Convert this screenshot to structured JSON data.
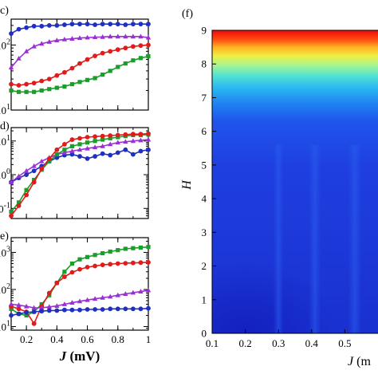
{
  "chart_data": [
    {
      "id": "c",
      "type": "line",
      "panel_label": "c)",
      "yscale": "log",
      "ytick_labels": [
        {
          "base": "10",
          "exp": "2"
        },
        {
          "base": "10",
          "exp": "1"
        }
      ],
      "ytick_values": [
        100,
        10
      ],
      "ylim": [
        10,
        250
      ],
      "xlim": [
        0.1,
        1.0
      ],
      "series": [
        {
          "color": "#1f2fbf",
          "marker": "circle",
          "x": [
            0.1,
            0.15,
            0.2,
            0.25,
            0.3,
            0.35,
            0.4,
            0.45,
            0.5,
            0.55,
            0.6,
            0.65,
            0.7,
            0.75,
            0.8,
            0.85,
            0.9,
            0.95,
            1.0
          ],
          "values": [
            150,
            175,
            185,
            195,
            195,
            200,
            200,
            205,
            210,
            210,
            210,
            205,
            210,
            210,
            210,
            205,
            210,
            210,
            210
          ]
        },
        {
          "color": "#9b2fd6",
          "marker": "triangle",
          "x": [
            0.1,
            0.15,
            0.2,
            0.25,
            0.3,
            0.35,
            0.4,
            0.45,
            0.5,
            0.55,
            0.6,
            0.65,
            0.7,
            0.75,
            0.8,
            0.85,
            0.9,
            0.95,
            1.0
          ],
          "values": [
            45,
            62,
            80,
            95,
            105,
            112,
            118,
            122,
            125,
            128,
            130,
            132,
            133,
            135,
            135,
            135,
            135,
            135,
            130
          ]
        },
        {
          "color": "#e11a1a",
          "marker": "circle",
          "x": [
            0.1,
            0.15,
            0.2,
            0.25,
            0.3,
            0.35,
            0.4,
            0.45,
            0.5,
            0.55,
            0.6,
            0.65,
            0.7,
            0.75,
            0.8,
            0.85,
            0.9,
            0.95,
            1.0
          ],
          "values": [
            25,
            24,
            25,
            26,
            28,
            30,
            34,
            38,
            44,
            52,
            60,
            68,
            75,
            80,
            85,
            90,
            95,
            98,
            100
          ]
        },
        {
          "color": "#1a9e2a",
          "marker": "square",
          "x": [
            0.1,
            0.15,
            0.2,
            0.25,
            0.3,
            0.35,
            0.4,
            0.45,
            0.5,
            0.55,
            0.6,
            0.65,
            0.7,
            0.75,
            0.8,
            0.85,
            0.9,
            0.95,
            1.0
          ],
          "values": [
            20,
            19,
            19,
            19,
            20,
            21,
            22,
            23,
            25,
            27,
            29,
            31,
            35,
            40,
            46,
            52,
            58,
            63,
            67
          ]
        }
      ]
    },
    {
      "id": "d",
      "type": "line",
      "panel_label": "d)",
      "yscale": "log",
      "ytick_labels": [
        {
          "base": "10",
          "exp": "1"
        },
        {
          "base": "10",
          "exp": "0"
        },
        {
          "base": "10",
          "exp": "-1"
        }
      ],
      "ytick_values": [
        10,
        1,
        0.1
      ],
      "ylim": [
        0.05,
        25
      ],
      "xlim": [
        0.1,
        1.0
      ],
      "series": [
        {
          "color": "#1f2fbf",
          "marker": "circle",
          "x": [
            0.1,
            0.15,
            0.2,
            0.25,
            0.3,
            0.35,
            0.4,
            0.45,
            0.5,
            0.55,
            0.6,
            0.65,
            0.7,
            0.75,
            0.8,
            0.85,
            0.9,
            0.95,
            1.0
          ],
          "values": [
            0.6,
            0.8,
            1.0,
            1.3,
            1.8,
            2.5,
            3.2,
            3.8,
            4.0,
            3.5,
            3.0,
            3.5,
            4.2,
            3.8,
            4.5,
            5.5,
            4.0,
            5.0,
            5.5
          ]
        },
        {
          "color": "#9b2fd6",
          "marker": "triangle",
          "x": [
            0.1,
            0.15,
            0.2,
            0.25,
            0.3,
            0.35,
            0.4,
            0.45,
            0.5,
            0.55,
            0.6,
            0.65,
            0.7,
            0.75,
            0.8,
            0.85,
            0.9,
            0.95,
            1.0
          ],
          "values": [
            0.6,
            0.9,
            1.3,
            1.8,
            2.5,
            3.2,
            4.0,
            4.5,
            5.0,
            5.5,
            6.0,
            6.5,
            7.0,
            8.0,
            9.0,
            9.5,
            10,
            10.5,
            11
          ]
        },
        {
          "color": "#1a9e2a",
          "marker": "square",
          "x": [
            0.1,
            0.15,
            0.2,
            0.25,
            0.3,
            0.35,
            0.4,
            0.45,
            0.5,
            0.55,
            0.6,
            0.65,
            0.7,
            0.75,
            0.8,
            0.85,
            0.9,
            0.95,
            1.0
          ],
          "values": [
            0.08,
            0.15,
            0.35,
            0.7,
            1.4,
            2.5,
            4.0,
            5.5,
            7.0,
            8.0,
            9.0,
            10,
            11,
            12,
            13,
            14,
            15,
            15,
            15.5
          ]
        },
        {
          "color": "#e11a1a",
          "marker": "circle",
          "x": [
            0.1,
            0.15,
            0.2,
            0.25,
            0.3,
            0.35,
            0.4,
            0.45,
            0.5,
            0.55,
            0.6,
            0.65,
            0.7,
            0.75,
            0.8,
            0.85,
            0.9,
            0.95,
            1.0
          ],
          "values": [
            0.06,
            0.12,
            0.25,
            0.6,
            1.5,
            3.0,
            5.5,
            8.0,
            11,
            12,
            13,
            13.5,
            14,
            14.5,
            15,
            15.5,
            16,
            16,
            16.5
          ]
        }
      ]
    },
    {
      "id": "e",
      "type": "line",
      "panel_label": "e)",
      "yscale": "log",
      "ytick_labels": [
        {
          "base": "10",
          "exp": "3"
        },
        {
          "base": "10",
          "exp": "2"
        },
        {
          "base": "10",
          "exp": "1"
        }
      ],
      "ytick_values": [
        1000,
        100,
        10
      ],
      "ylim": [
        8,
        2500
      ],
      "xlim": [
        0.1,
        1.0
      ],
      "xticks": [
        0.2,
        0.4,
        0.6,
        0.8,
        1.0
      ],
      "xtick_labels": [
        "0.2",
        "0.4",
        "0.6",
        "0.8",
        "1"
      ],
      "xlabel_var": "J",
      "xlabel_unit": " (mV)",
      "series": [
        {
          "color": "#1a9e2a",
          "marker": "square",
          "x": [
            0.1,
            0.15,
            0.2,
            0.25,
            0.3,
            0.35,
            0.4,
            0.45,
            0.5,
            0.55,
            0.6,
            0.65,
            0.7,
            0.75,
            0.8,
            0.85,
            0.9,
            0.95,
            1.0
          ],
          "values": [
            30,
            22,
            20,
            25,
            40,
            70,
            150,
            300,
            500,
            650,
            750,
            850,
            950,
            1050,
            1150,
            1250,
            1300,
            1350,
            1400
          ]
        },
        {
          "color": "#e11a1a",
          "marker": "circle",
          "x": [
            0.1,
            0.15,
            0.2,
            0.25,
            0.3,
            0.35,
            0.4,
            0.45,
            0.5,
            0.55,
            0.6,
            0.65,
            0.7,
            0.75,
            0.8,
            0.85,
            0.9,
            0.95,
            1.0
          ],
          "values": [
            35,
            30,
            25,
            12,
            35,
            80,
            150,
            220,
            290,
            350,
            400,
            430,
            460,
            480,
            500,
            510,
            520,
            530,
            540
          ]
        },
        {
          "color": "#9b2fd6",
          "marker": "triangle",
          "x": [
            0.1,
            0.15,
            0.2,
            0.25,
            0.3,
            0.35,
            0.4,
            0.45,
            0.5,
            0.55,
            0.6,
            0.65,
            0.7,
            0.75,
            0.8,
            0.85,
            0.9,
            0.95,
            1.0
          ],
          "values": [
            40,
            38,
            35,
            32,
            32,
            34,
            36,
            40,
            44,
            48,
            52,
            56,
            60,
            64,
            70,
            76,
            82,
            88,
            95
          ]
        },
        {
          "color": "#1f2fbf",
          "marker": "circle",
          "x": [
            0.1,
            0.15,
            0.2,
            0.25,
            0.3,
            0.35,
            0.4,
            0.45,
            0.5,
            0.55,
            0.6,
            0.65,
            0.7,
            0.75,
            0.8,
            0.85,
            0.9,
            0.95,
            1.0
          ],
          "values": [
            20,
            22,
            24,
            25,
            26,
            27,
            27,
            28,
            28,
            28,
            29,
            29,
            29,
            30,
            30,
            30,
            30,
            30,
            31
          ]
        }
      ]
    },
    {
      "id": "f",
      "type": "heatmap",
      "panel_label": "(f)",
      "ylabel": "H",
      "xlabel_var": "J",
      "xlabel_unit": " (m",
      "xlim": [
        0.1,
        0.6
      ],
      "ylim": [
        0,
        9
      ],
      "xticks": [
        0.1,
        0.2,
        0.3,
        0.4,
        0.5
      ],
      "xtick_labels": [
        "0.1",
        "0.2",
        "0.3",
        "0.4",
        "0.5"
      ],
      "yticks": [
        0,
        1,
        2,
        3,
        4,
        5,
        6,
        7,
        8,
        9
      ],
      "ytick_labels": [
        "0",
        "1",
        "2",
        "3",
        "4",
        "5",
        "6",
        "7",
        "8",
        "9"
      ],
      "colormap": [
        "#1522c9",
        "#1a44e6",
        "#1f78f0",
        "#2ab4f2",
        "#4fe0d6",
        "#9cf59a",
        "#e8f04a",
        "#ffb020",
        "#ff4a10",
        "#ee0a0a"
      ]
    }
  ]
}
